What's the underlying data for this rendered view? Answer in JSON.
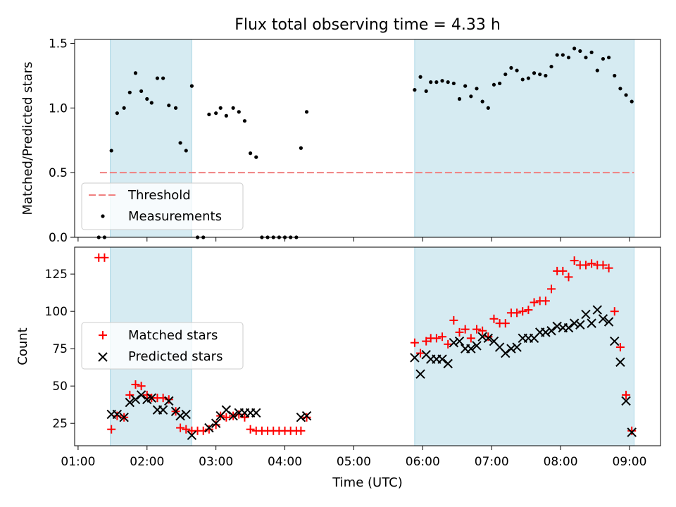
{
  "chart_data": [
    {
      "type": "scatter",
      "title": "Flux total observing time = 4.33 h",
      "xlabel": "",
      "ylabel": "Matched/Predicted stars",
      "xlim": [
        "00:57",
        "09:27"
      ],
      "ylim": [
        0,
        1.53
      ],
      "y_ticks": [
        0.0,
        0.5,
        1.0,
        1.5
      ],
      "y_tick_labels": [
        "0.0",
        "0.5",
        "1.0",
        "1.5"
      ],
      "x_ticks": [
        "01:00",
        "02:00",
        "03:00",
        "04:00",
        "05:00",
        "06:00",
        "07:00",
        "08:00",
        "09:00"
      ],
      "shaded_intervals": [
        [
          "01:28",
          "02:39"
        ],
        [
          "05:53",
          "09:04"
        ]
      ],
      "threshold": {
        "name": "Threshold",
        "y": 0.5,
        "x_range": [
          "01:19",
          "09:04"
        ],
        "color": "#f08080"
      },
      "legend": {
        "position": "lower-left",
        "entries": [
          "Threshold",
          "Measurements"
        ]
      },
      "series": [
        {
          "name": "Measurements",
          "color": "#000000",
          "points": [
            [
              "01:18",
              0.0
            ],
            [
              "01:23",
              0.0
            ],
            [
              "01:29",
              0.67
            ],
            [
              "01:34",
              0.96
            ],
            [
              "01:40",
              1.0
            ],
            [
              "01:45",
              1.12
            ],
            [
              "01:50",
              1.27
            ],
            [
              "01:55",
              1.13
            ],
            [
              "02:00",
              1.07
            ],
            [
              "02:04",
              1.04
            ],
            [
              "02:09",
              1.23
            ],
            [
              "02:14",
              1.23
            ],
            [
              "02:19",
              1.02
            ],
            [
              "02:25",
              1.0
            ],
            [
              "02:29",
              0.73
            ],
            [
              "02:34",
              0.67
            ],
            [
              "02:39",
              1.17
            ],
            [
              "02:44",
              0.0
            ],
            [
              "02:49",
              0.0
            ],
            [
              "02:54",
              0.95
            ],
            [
              "03:00",
              0.96
            ],
            [
              "03:04",
              1.0
            ],
            [
              "03:09",
              0.94
            ],
            [
              "03:15",
              1.0
            ],
            [
              "03:20",
              0.97
            ],
            [
              "03:25",
              0.9
            ],
            [
              "03:30",
              0.65
            ],
            [
              "03:35",
              0.62
            ],
            [
              "03:40",
              0.0
            ],
            [
              "03:45",
              0.0
            ],
            [
              "03:50",
              0.0
            ],
            [
              "03:55",
              0.0
            ],
            [
              "04:00",
              0.0
            ],
            [
              "04:05",
              0.0
            ],
            [
              "04:10",
              0.0
            ],
            [
              "04:14",
              0.69
            ],
            [
              "04:19",
              0.97
            ],
            [
              "05:53",
              1.14
            ],
            [
              "05:58",
              1.24
            ],
            [
              "06:03",
              1.13
            ],
            [
              "06:07",
              1.2
            ],
            [
              "06:12",
              1.2
            ],
            [
              "06:17",
              1.21
            ],
            [
              "06:22",
              1.2
            ],
            [
              "06:27",
              1.19
            ],
            [
              "06:32",
              1.07
            ],
            [
              "06:37",
              1.17
            ],
            [
              "06:42",
              1.09
            ],
            [
              "06:47",
              1.15
            ],
            [
              "06:52",
              1.05
            ],
            [
              "06:57",
              1.0
            ],
            [
              "07:02",
              1.18
            ],
            [
              "07:07",
              1.19
            ],
            [
              "07:12",
              1.26
            ],
            [
              "07:17",
              1.31
            ],
            [
              "07:22",
              1.29
            ],
            [
              "07:27",
              1.22
            ],
            [
              "07:32",
              1.23
            ],
            [
              "07:37",
              1.27
            ],
            [
              "07:42",
              1.26
            ],
            [
              "07:47",
              1.25
            ],
            [
              "07:52",
              1.32
            ],
            [
              "07:57",
              1.41
            ],
            [
              "08:02",
              1.41
            ],
            [
              "08:07",
              1.39
            ],
            [
              "08:12",
              1.46
            ],
            [
              "08:17",
              1.44
            ],
            [
              "08:22",
              1.39
            ],
            [
              "08:27",
              1.43
            ],
            [
              "08:32",
              1.29
            ],
            [
              "08:37",
              1.38
            ],
            [
              "08:42",
              1.39
            ],
            [
              "08:47",
              1.25
            ],
            [
              "08:52",
              1.15
            ],
            [
              "08:57",
              1.1
            ],
            [
              "09:02",
              1.05
            ]
          ]
        }
      ]
    },
    {
      "type": "scatter",
      "title": "",
      "xlabel": "Time (UTC)",
      "ylabel": "Count",
      "xlim": [
        "00:57",
        "09:27"
      ],
      "ylim": [
        10,
        143
      ],
      "y_ticks": [
        25,
        50,
        75,
        100,
        125
      ],
      "y_tick_labels": [
        "25",
        "50",
        "75",
        "100",
        "125"
      ],
      "x_ticks": [
        "01:00",
        "02:00",
        "03:00",
        "04:00",
        "05:00",
        "06:00",
        "07:00",
        "08:00",
        "09:00"
      ],
      "x_tick_labels": [
        "01:00",
        "02:00",
        "03:00",
        "04:00",
        "05:00",
        "06:00",
        "07:00",
        "08:00",
        "09:00"
      ],
      "shaded_intervals": [
        [
          "01:28",
          "02:39"
        ],
        [
          "05:53",
          "09:04"
        ]
      ],
      "legend": {
        "position": "center-left",
        "entries": [
          "Matched stars",
          "Predicted stars"
        ]
      },
      "series": [
        {
          "name": "Matched stars",
          "color": "#ff0000",
          "marker": "+",
          "points": [
            [
              "01:18",
              136
            ],
            [
              "01:23",
              136
            ],
            [
              "01:29",
              21
            ],
            [
              "01:34",
              30
            ],
            [
              "01:40",
              29
            ],
            [
              "01:45",
              44
            ],
            [
              "01:50",
              51
            ],
            [
              "01:55",
              50
            ],
            [
              "02:00",
              44
            ],
            [
              "02:04",
              42
            ],
            [
              "02:09",
              42
            ],
            [
              "02:14",
              42
            ],
            [
              "02:19",
              41
            ],
            [
              "02:25",
              33
            ],
            [
              "02:29",
              22
            ],
            [
              "02:34",
              21
            ],
            [
              "02:39",
              20
            ],
            [
              "02:44",
              20
            ],
            [
              "02:49",
              20
            ],
            [
              "02:54",
              21
            ],
            [
              "03:00",
              24
            ],
            [
              "03:04",
              30
            ],
            [
              "03:09",
              29
            ],
            [
              "03:15",
              30
            ],
            [
              "03:20",
              31
            ],
            [
              "03:25",
              29
            ],
            [
              "03:30",
              21
            ],
            [
              "03:35",
              20
            ],
            [
              "03:40",
              20
            ],
            [
              "03:45",
              20
            ],
            [
              "03:50",
              20
            ],
            [
              "03:55",
              20
            ],
            [
              "04:00",
              20
            ],
            [
              "04:05",
              20
            ],
            [
              "04:10",
              20
            ],
            [
              "04:14",
              20
            ],
            [
              "04:19",
              29
            ],
            [
              "05:53",
              79
            ],
            [
              "05:58",
              72
            ],
            [
              "06:03",
              80
            ],
            [
              "06:07",
              82
            ],
            [
              "06:12",
              82
            ],
            [
              "06:17",
              83
            ],
            [
              "06:22",
              78
            ],
            [
              "06:27",
              94
            ],
            [
              "06:32",
              86
            ],
            [
              "06:37",
              88
            ],
            [
              "06:42",
              82
            ],
            [
              "06:47",
              88
            ],
            [
              "06:52",
              87
            ],
            [
              "06:57",
              83
            ],
            [
              "07:02",
              95
            ],
            [
              "07:07",
              92
            ],
            [
              "07:12",
              92
            ],
            [
              "07:17",
              99
            ],
            [
              "07:22",
              99
            ],
            [
              "07:27",
              100
            ],
            [
              "07:32",
              101
            ],
            [
              "07:37",
              106
            ],
            [
              "07:42",
              107
            ],
            [
              "07:47",
              107
            ],
            [
              "07:52",
              115
            ],
            [
              "07:57",
              127
            ],
            [
              "08:02",
              127
            ],
            [
              "08:07",
              123
            ],
            [
              "08:12",
              134
            ],
            [
              "08:17",
              131
            ],
            [
              "08:22",
              131
            ],
            [
              "08:27",
              132
            ],
            [
              "08:32",
              131
            ],
            [
              "08:37",
              131
            ],
            [
              "08:42",
              129
            ],
            [
              "08:47",
              100
            ],
            [
              "08:52",
              76
            ],
            [
              "08:57",
              44
            ],
            [
              "09:02",
              20
            ]
          ]
        },
        {
          "name": "Predicted stars",
          "color": "#000000",
          "marker": "x",
          "points": [
            [
              "01:29",
              31
            ],
            [
              "01:34",
              31
            ],
            [
              "01:40",
              29
            ],
            [
              "01:45",
              39
            ],
            [
              "01:50",
              41
            ],
            [
              "01:55",
              44
            ],
            [
              "02:00",
              41
            ],
            [
              "02:04",
              42
            ],
            [
              "02:09",
              34
            ],
            [
              "02:14",
              34
            ],
            [
              "02:19",
              40
            ],
            [
              "02:25",
              33
            ],
            [
              "02:29",
              30
            ],
            [
              "02:34",
              31
            ],
            [
              "02:39",
              17
            ],
            [
              "02:54",
              22
            ],
            [
              "03:00",
              25
            ],
            [
              "03:04",
              30
            ],
            [
              "03:09",
              34
            ],
            [
              "03:15",
              30
            ],
            [
              "03:20",
              32
            ],
            [
              "03:25",
              32
            ],
            [
              "03:30",
              32
            ],
            [
              "03:35",
              32
            ],
            [
              "04:14",
              29
            ],
            [
              "04:19",
              30
            ],
            [
              "05:53",
              69
            ],
            [
              "05:58",
              58
            ],
            [
              "06:03",
              71
            ],
            [
              "06:07",
              68
            ],
            [
              "06:12",
              68
            ],
            [
              "06:17",
              68
            ],
            [
              "06:22",
              65
            ],
            [
              "06:27",
              79
            ],
            [
              "06:32",
              80
            ],
            [
              "06:37",
              75
            ],
            [
              "06:42",
              75
            ],
            [
              "06:47",
              77
            ],
            [
              "06:52",
              83
            ],
            [
              "06:57",
              82
            ],
            [
              "07:02",
              80
            ],
            [
              "07:07",
              76
            ],
            [
              "07:12",
              72
            ],
            [
              "07:17",
              75
            ],
            [
              "07:22",
              76
            ],
            [
              "07:27",
              82
            ],
            [
              "07:32",
              82
            ],
            [
              "07:37",
              82
            ],
            [
              "07:42",
              86
            ],
            [
              "07:47",
              86
            ],
            [
              "07:52",
              87
            ],
            [
              "07:57",
              90
            ],
            [
              "08:02",
              89
            ],
            [
              "08:07",
              89
            ],
            [
              "08:12",
              92
            ],
            [
              "08:17",
              91
            ],
            [
              "08:22",
              98
            ],
            [
              "08:27",
              92
            ],
            [
              "08:32",
              101
            ],
            [
              "08:37",
              95
            ],
            [
              "08:42",
              93
            ],
            [
              "08:47",
              80
            ],
            [
              "08:52",
              66
            ],
            [
              "08:57",
              40
            ],
            [
              "09:02",
              19
            ]
          ]
        }
      ]
    }
  ]
}
